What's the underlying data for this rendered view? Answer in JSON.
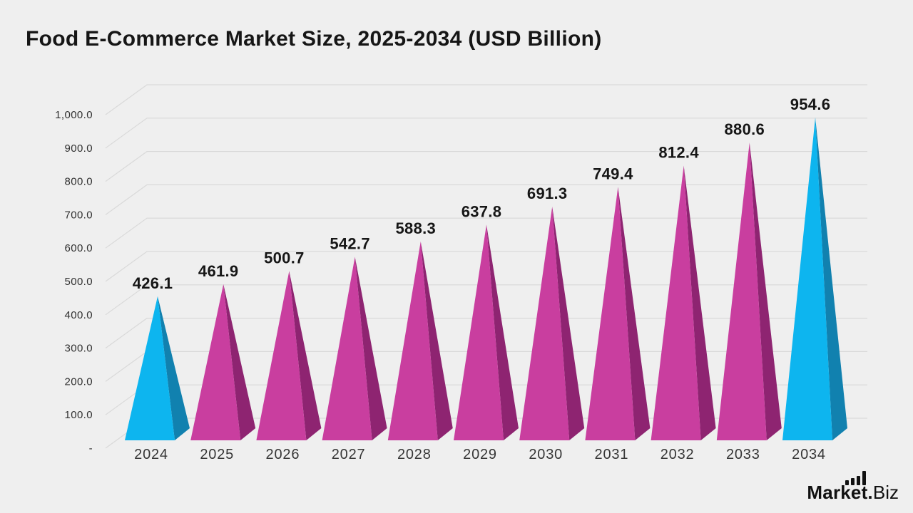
{
  "title": "Food E-Commerce Market Size, 2025-2034 (USD Billion)",
  "chart_data": {
    "type": "bar",
    "style": "3d-cone",
    "title": "Food E-Commerce Market Size, 2025-2034 (USD Billion)",
    "categories": [
      "2024",
      "2025",
      "2026",
      "2027",
      "2028",
      "2029",
      "2030",
      "2031",
      "2032",
      "2033",
      "2034"
    ],
    "values": [
      426.1,
      461.9,
      500.7,
      542.7,
      588.3,
      637.8,
      691.3,
      749.4,
      812.4,
      880.6,
      954.6
    ],
    "xlabel": "",
    "ylabel": "",
    "ylim": [
      0,
      1000
    ],
    "ytick_step": 100,
    "ytick_labels": [
      "-",
      "100.0",
      "200.0",
      "300.0",
      "400.0",
      "500.0",
      "600.0",
      "700.0",
      "800.0",
      "900.0",
      "1,000.0"
    ],
    "grid": true,
    "legend": false,
    "accent_indices": [
      0,
      10
    ]
  },
  "colors": {
    "background": "#efefef",
    "grid": "#d9d9d9",
    "title_text": "#161616",
    "ytick_text": "#303030",
    "xtick_text": "#363636",
    "value_text": "#161616",
    "bar_front": "#c93e9f",
    "bar_side": "#8e2471",
    "accent_front": "#0db5ef",
    "accent_side": "#1181af",
    "logo_text": "#111111"
  },
  "logo": {
    "brand_bold": "Market.",
    "brand_light": "Biz",
    "icon": "bar-chart-icon"
  }
}
